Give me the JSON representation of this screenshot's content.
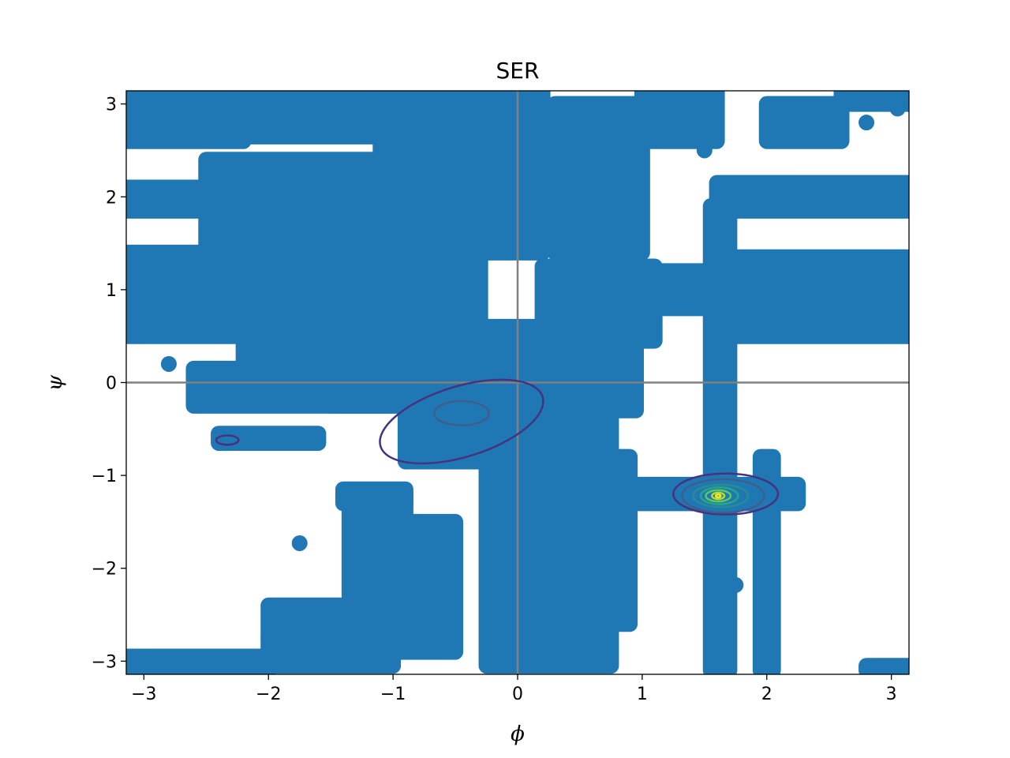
{
  "chart_data": {
    "type": "scatter",
    "title": "SER",
    "xlabel": "ϕ",
    "ylabel": "ψ",
    "xlim": [
      -3.1416,
      3.1416
    ],
    "ylim": [
      -3.1416,
      3.1416
    ],
    "xticks": [
      -3,
      -2,
      -1,
      0,
      1,
      2,
      3
    ],
    "yticks": [
      -3,
      -2,
      -1,
      0,
      1,
      2,
      3
    ],
    "xtick_labels": [
      "−3",
      "−2",
      "−1",
      "0",
      "1",
      "2",
      "3"
    ],
    "ytick_labels": [
      "−3",
      "−2",
      "−1",
      "0",
      "1",
      "2",
      "3"
    ],
    "grid": false,
    "reference_lines": {
      "x": 0,
      "y": 0,
      "color": "#808080"
    },
    "scatter_color": "#1f77b4",
    "regions": [
      {
        "x": [
          -3.14,
          -0.3
        ],
        "y": [
          0.5,
          1.4
        ]
      },
      {
        "x": [
          -3.14,
          -1.5
        ],
        "y": [
          1.85,
          2.1
        ]
      },
      {
        "x": [
          -3.14,
          -2.2
        ],
        "y": [
          2.6,
          3.14
        ]
      },
      {
        "x": [
          -2.2,
          -1.0
        ],
        "y": [
          2.65,
          3.14
        ]
      },
      {
        "x": [
          -2.5,
          -1.0
        ],
        "y": [
          1.35,
          2.4
        ]
      },
      {
        "x": [
          -1.1,
          0.2
        ],
        "y": [
          1.4,
          3.14
        ]
      },
      {
        "x": [
          -2.2,
          0.6
        ],
        "y": [
          0.15,
          0.6
        ]
      },
      {
        "x": [
          -2.6,
          -1.0
        ],
        "y": [
          -0.25,
          0.15
        ]
      },
      {
        "x": [
          -2.4,
          -1.6
        ],
        "y": [
          -0.65,
          -0.55
        ]
      },
      {
        "x": [
          -1.5,
          -0.7
        ],
        "y": [
          -0.25,
          0.1
        ]
      },
      {
        "x": [
          -0.9,
          0.1
        ],
        "y": [
          -0.85,
          0.0
        ]
      },
      {
        "x": [
          -1.4,
          -0.9
        ],
        "y": [
          -1.3,
          -1.15
        ]
      },
      {
        "x": [
          -1.35,
          -0.9
        ],
        "y": [
          -2.3,
          -1.2
        ]
      },
      {
        "x": [
          -1.0,
          -0.5
        ],
        "y": [
          -2.9,
          -1.5
        ]
      },
      {
        "x": [
          -0.25,
          0.75
        ],
        "y": [
          -3.05,
          -0.2
        ]
      },
      {
        "x": [
          0.0,
          0.95
        ],
        "y": [
          -0.3,
          0.5
        ]
      },
      {
        "x": [
          0.2,
          1.1
        ],
        "y": [
          0.45,
          1.25
        ]
      },
      {
        "x": [
          0.3,
          1.0
        ],
        "y": [
          1.4,
          3.0
        ]
      },
      {
        "x": [
          0.5,
          0.9
        ],
        "y": [
          -2.6,
          -0.8
        ]
      },
      {
        "x": [
          0.7,
          1.4
        ],
        "y": [
          -1.3,
          -1.1
        ]
      },
      {
        "x": [
          1.4,
          2.25
        ],
        "y": [
          -1.3,
          -1.1
        ]
      },
      {
        "x": [
          1.0,
          1.6
        ],
        "y": [
          0.8,
          1.2
        ]
      },
      {
        "x": [
          1.6,
          3.14
        ],
        "y": [
          0.5,
          1.35
        ]
      },
      {
        "x": [
          1.55,
          1.7
        ],
        "y": [
          -3.1,
          1.9
        ]
      },
      {
        "x": [
          1.95,
          2.05
        ],
        "y": [
          -3.1,
          -0.8
        ]
      },
      {
        "x": [
          1.6,
          3.14
        ],
        "y": [
          1.85,
          2.15
        ]
      },
      {
        "x": [
          1.0,
          1.6
        ],
        "y": [
          2.6,
          3.14
        ]
      },
      {
        "x": [
          2.0,
          2.6
        ],
        "y": [
          2.6,
          3.0
        ]
      },
      {
        "x": [
          2.6,
          3.14
        ],
        "y": [
          3.0,
          3.14
        ]
      },
      {
        "x": [
          -3.14,
          -2.0
        ],
        "y": [
          -3.1,
          -2.95
        ]
      },
      {
        "x": [
          -2.0,
          -1.0
        ],
        "y": [
          -3.05,
          -2.4
        ]
      },
      {
        "x": [
          2.8,
          3.14
        ],
        "y": [
          -3.1,
          -3.05
        ]
      }
    ],
    "isolated_points": [
      {
        "x": -1.75,
        "y": -1.73
      },
      {
        "x": 1.75,
        "y": -2.18
      },
      {
        "x": -2.0,
        "y": -2.75
      },
      {
        "x": 2.8,
        "y": 2.8
      },
      {
        "x": 3.05,
        "y": 2.95
      },
      {
        "x": 2.6,
        "y": 2.95
      },
      {
        "x": 1.5,
        "y": 2.5
      },
      {
        "x": 0.55,
        "y": 0.25
      },
      {
        "x": -2.8,
        "y": 0.2
      },
      {
        "x": 0.2,
        "y": -0.45
      },
      {
        "x": -1.8,
        "y": 1.5
      },
      {
        "x": -1.2,
        "y": 2.0
      }
    ],
    "contours": [
      {
        "color": "#46327e",
        "center": [
          -0.45,
          -0.42
        ],
        "rx": 0.68,
        "ry": 0.38,
        "rotation_deg": -17
      },
      {
        "color": "#3e5f8a",
        "center": [
          -0.45,
          -0.33
        ],
        "rx": 0.22,
        "ry": 0.13,
        "rotation_deg": 0
      },
      {
        "color": "#46327e",
        "center": [
          -2.33,
          -0.62
        ],
        "rx": 0.09,
        "ry": 0.05,
        "rotation_deg": 0
      },
      {
        "color": "#46327e",
        "center": [
          1.67,
          -1.2
        ],
        "rx": 0.42,
        "ry": 0.22,
        "rotation_deg": 0
      },
      {
        "color": "#3e5f8a",
        "center": [
          1.65,
          -1.22
        ],
        "rx": 0.33,
        "ry": 0.18,
        "rotation_deg": 0
      },
      {
        "color": "#2c8b8e",
        "center": [
          1.63,
          -1.22
        ],
        "rx": 0.22,
        "ry": 0.12,
        "rotation_deg": 0
      },
      {
        "color": "#26a784",
        "center": [
          1.62,
          -1.22
        ],
        "rx": 0.15,
        "ry": 0.09,
        "rotation_deg": 0
      },
      {
        "color": "#5ec962",
        "center": [
          1.61,
          -1.22
        ],
        "rx": 0.1,
        "ry": 0.06,
        "rotation_deg": 0
      },
      {
        "color": "#b5de2b",
        "center": [
          1.61,
          -1.22
        ],
        "rx": 0.05,
        "ry": 0.035,
        "rotation_deg": 0
      },
      {
        "color": "#fde725",
        "center": [
          1.61,
          -1.22
        ],
        "rx": 0.02,
        "ry": 0.015,
        "rotation_deg": 0
      }
    ]
  }
}
